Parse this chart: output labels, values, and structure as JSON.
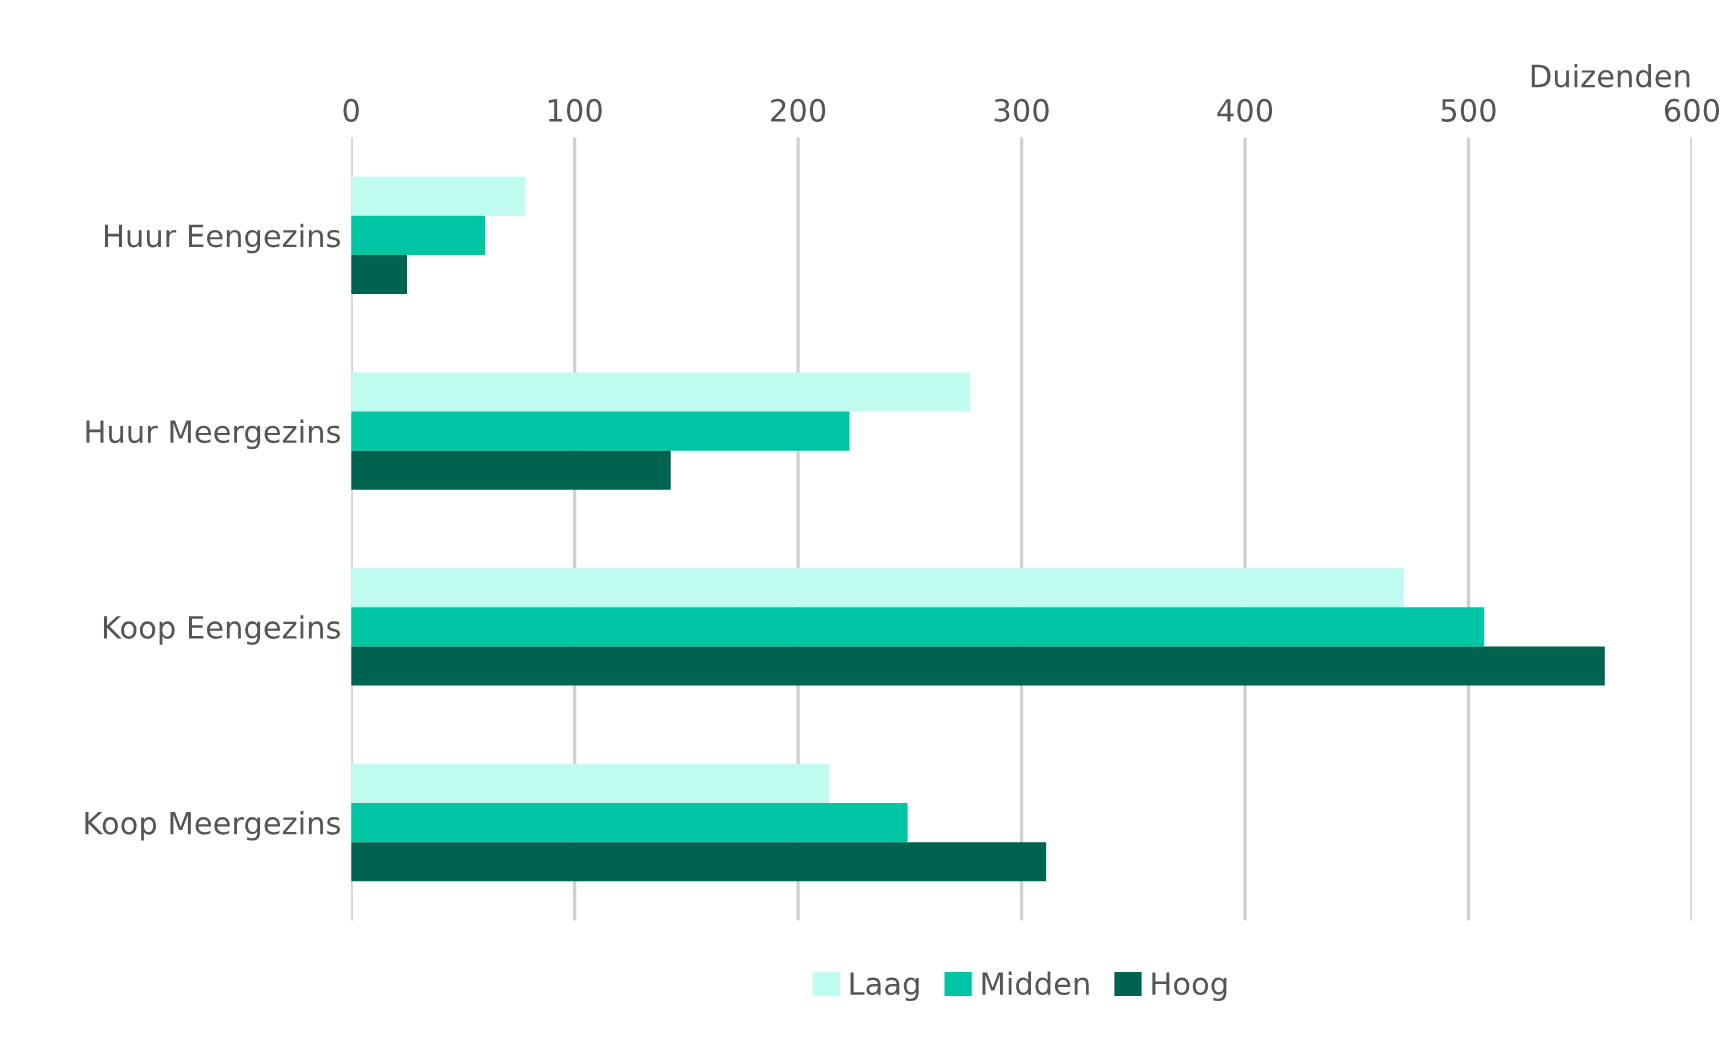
{
  "chart_data": {
    "type": "bar",
    "orientation": "horizontal",
    "xlabel": "Duizenden",
    "categories": [
      "Huur Eengezins",
      "Huur Meergezins",
      "Koop Eengezins",
      "Koop Meergezins"
    ],
    "series": [
      {
        "name": "Laag",
        "color": "#c0fbf0",
        "values": [
          78,
          277,
          471,
          214
        ]
      },
      {
        "name": "Midden",
        "color": "#00c5a2",
        "values": [
          60,
          223,
          507,
          249
        ]
      },
      {
        "name": "Hoog",
        "color": "#006350",
        "values": [
          25,
          143,
          561,
          311
        ]
      }
    ],
    "xlim": [
      0,
      600
    ],
    "xticks": [
      0,
      100,
      200,
      300,
      400,
      500,
      600
    ],
    "grid": "x",
    "legend": "bottom"
  }
}
